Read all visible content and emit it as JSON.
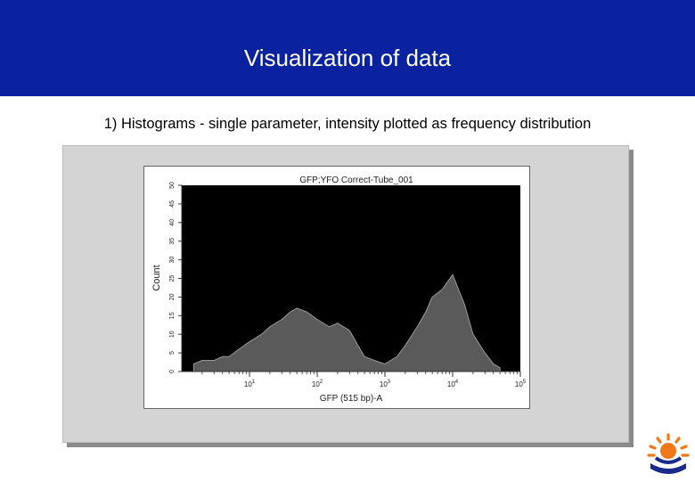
{
  "slide": {
    "title": "Visualization of data",
    "subtitle": "1) Histograms - single parameter, intensity plotted as frequency distribution"
  },
  "colors": {
    "header_bg": "#0a22a0",
    "plot_bg": "#000000",
    "histogram_fill": "#5a5a5a",
    "histogram_line": "#9a9a9a"
  },
  "chart_data": {
    "type": "area",
    "title": "GFP;YFO Correct-Tube_001",
    "xlabel": "GFP (515 bp)-A",
    "ylabel": "Count",
    "xscale": "log",
    "xlim": [
      1,
      100000
    ],
    "ylim": [
      0,
      50
    ],
    "yticks": [
      0,
      5,
      10,
      15,
      20,
      25,
      30,
      35,
      40,
      45,
      50
    ],
    "xticks": [
      {
        "value": 10,
        "base": "10",
        "exp": "1"
      },
      {
        "value": 100,
        "base": "10",
        "exp": "2"
      },
      {
        "value": 1000,
        "base": "10",
        "exp": "3"
      },
      {
        "value": 10000,
        "base": "10",
        "exp": "4"
      },
      {
        "value": 100000,
        "base": "10",
        "exp": "5"
      }
    ],
    "grid": false,
    "series": [
      {
        "x": [
          1.5,
          2,
          3,
          4,
          5,
          7,
          10,
          15,
          20,
          30,
          40,
          50,
          70,
          100,
          150,
          200,
          300,
          400,
          500,
          700,
          1000,
          1500,
          2000,
          3000,
          4000,
          5000,
          7000,
          10000,
          15000,
          20000,
          30000,
          40000,
          50000
        ],
        "y": [
          2,
          3,
          3,
          4,
          4,
          6,
          8,
          10,
          12,
          14,
          16,
          17,
          16,
          14,
          12,
          13,
          11,
          7,
          4,
          3,
          2,
          4,
          7,
          12,
          16,
          20,
          22,
          26,
          18,
          10,
          5,
          2,
          1
        ]
      }
    ]
  },
  "logo": {
    "name": "university-logo"
  }
}
